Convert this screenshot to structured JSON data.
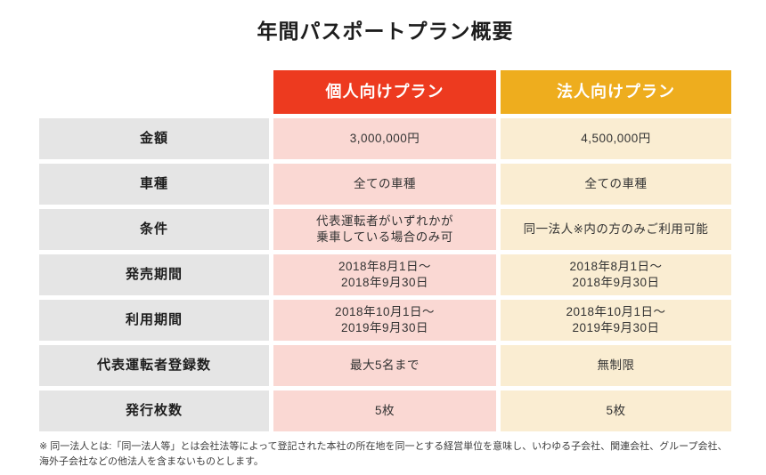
{
  "title": "年間パスポートプラン概要",
  "colors": {
    "individual_header": "#ED3A1F",
    "corporate_header": "#EEAD1E",
    "individual_cell": "#FAD8D3",
    "corporate_cell": "#FAEDD2",
    "label_cell": "#E5E5E5"
  },
  "table": {
    "plans": [
      {
        "label": "個人向けプラン"
      },
      {
        "label": "法人向けプラン"
      }
    ],
    "row_headers": [
      "金額",
      "車種",
      "条件",
      "発売期間",
      "利用期間",
      "代表運転者登録数",
      "発行枚数"
    ],
    "rows": [
      {
        "label": "金額",
        "individual": "3,000,000円",
        "corporate": "4,500,000円"
      },
      {
        "label": "車種",
        "individual": "全ての車種",
        "corporate": "全ての車種"
      },
      {
        "label": "条件",
        "individual": "代表運転者がいずれかが\n乗車している場合のみ可",
        "corporate": "同一法人※内の方のみご利用可能"
      },
      {
        "label": "発売期間",
        "individual": "2018年8月1日〜\n2018年9月30日",
        "corporate": "2018年8月1日〜\n2018年9月30日"
      },
      {
        "label": "利用期間",
        "individual": "2018年10月1日〜\n2019年9月30日",
        "corporate": "2018年10月1日〜\n2019年9月30日"
      },
      {
        "label": "代表運転者登録数",
        "individual": "最大5名まで",
        "corporate": "無制限"
      },
      {
        "label": "発行枚数",
        "individual": "5枚",
        "corporate": "5枚"
      }
    ]
  },
  "footnote": "※ 同一法人とは:「同一法人等」とは会社法等によって登記された本社の所在地を同一とする経営単位を意味し、いわゆる子会社、関連会社、グループ会社、海外子会社などの他法人を含まないものとします。"
}
